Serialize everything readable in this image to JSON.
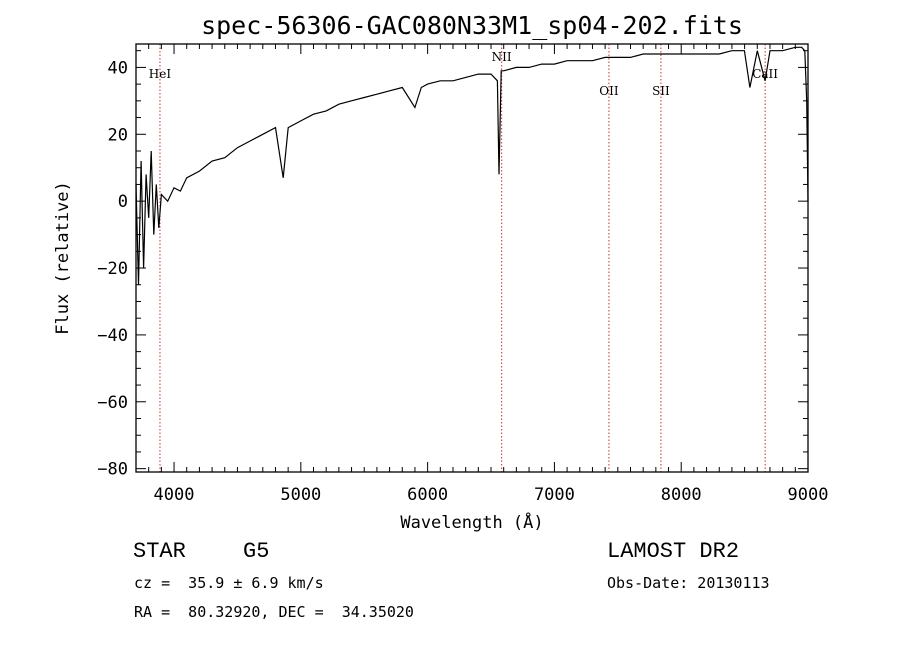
{
  "chart_data": {
    "type": "line",
    "title": "spec-56306-GAC080N33M1_sp04-202.fits",
    "xlabel": "Wavelength (Å)",
    "ylabel": "Flux (relative)",
    "xlim": [
      3700,
      9000
    ],
    "ylim": [
      -81,
      47
    ],
    "x_ticks": [
      4000,
      5000,
      6000,
      7000,
      8000,
      9000
    ],
    "y_ticks": [
      -80,
      -60,
      -40,
      -20,
      0,
      20,
      40
    ],
    "series": [
      {
        "x": [
          3700,
          3720,
          3740,
          3760,
          3780,
          3800,
          3820,
          3840,
          3860,
          3880,
          3900,
          3950,
          4000,
          4050,
          4100,
          4200,
          4300,
          4400,
          4500,
          4600,
          4700,
          4800,
          4861,
          4900,
          5000,
          5100,
          5200,
          5300,
          5400,
          5500,
          5600,
          5700,
          5800,
          5900,
          5950,
          6000,
          6100,
          6200,
          6300,
          6400,
          6500,
          6550,
          6563,
          6580,
          6600,
          6700,
          6800,
          6900,
          7000,
          7100,
          7200,
          7300,
          7400,
          7500,
          7600,
          7700,
          7800,
          7900,
          8000,
          8100,
          8200,
          8300,
          8400,
          8498,
          8542,
          8600,
          8662,
          8700,
          8800,
          8900,
          8950,
          8975,
          8990,
          9000
        ],
        "y": [
          5,
          -25,
          12,
          -20,
          8,
          -5,
          15,
          -10,
          5,
          -8,
          2,
          0,
          4,
          3,
          7,
          9,
          12,
          13,
          16,
          18,
          20,
          22,
          7,
          22,
          24,
          26,
          27,
          29,
          30,
          31,
          32,
          33,
          34,
          28,
          34,
          35,
          36,
          36,
          37,
          38,
          38,
          36,
          8,
          39,
          39,
          40,
          40,
          41,
          41,
          42,
          42,
          42,
          43,
          43,
          43,
          44,
          44,
          44,
          44,
          44,
          44,
          44,
          45,
          45,
          34,
          45,
          36,
          45,
          45,
          46,
          46,
          45,
          30,
          0
        ]
      }
    ],
    "line_markers": [
      {
        "label": "HeI",
        "x": 3889
      },
      {
        "label": "NII",
        "x": 6584
      },
      {
        "label": "OII",
        "x": 7430
      },
      {
        "label": "SII",
        "x": 7840
      },
      {
        "label": "CaII",
        "x": 8662
      }
    ],
    "grid": false,
    "legend": "none"
  },
  "info": {
    "object_class": "STAR",
    "subclass": "G5",
    "survey": "LAMOST DR2",
    "velocity": "cz =  35.9 ± 6.9 km/s",
    "obs_date": "Obs-Date: 20130113",
    "coords": "RA =  80.32920, DEC =  34.35020"
  },
  "colors": {
    "spectrum": "#000000",
    "marker_line": "#c0392b",
    "axes": "#000000"
  }
}
